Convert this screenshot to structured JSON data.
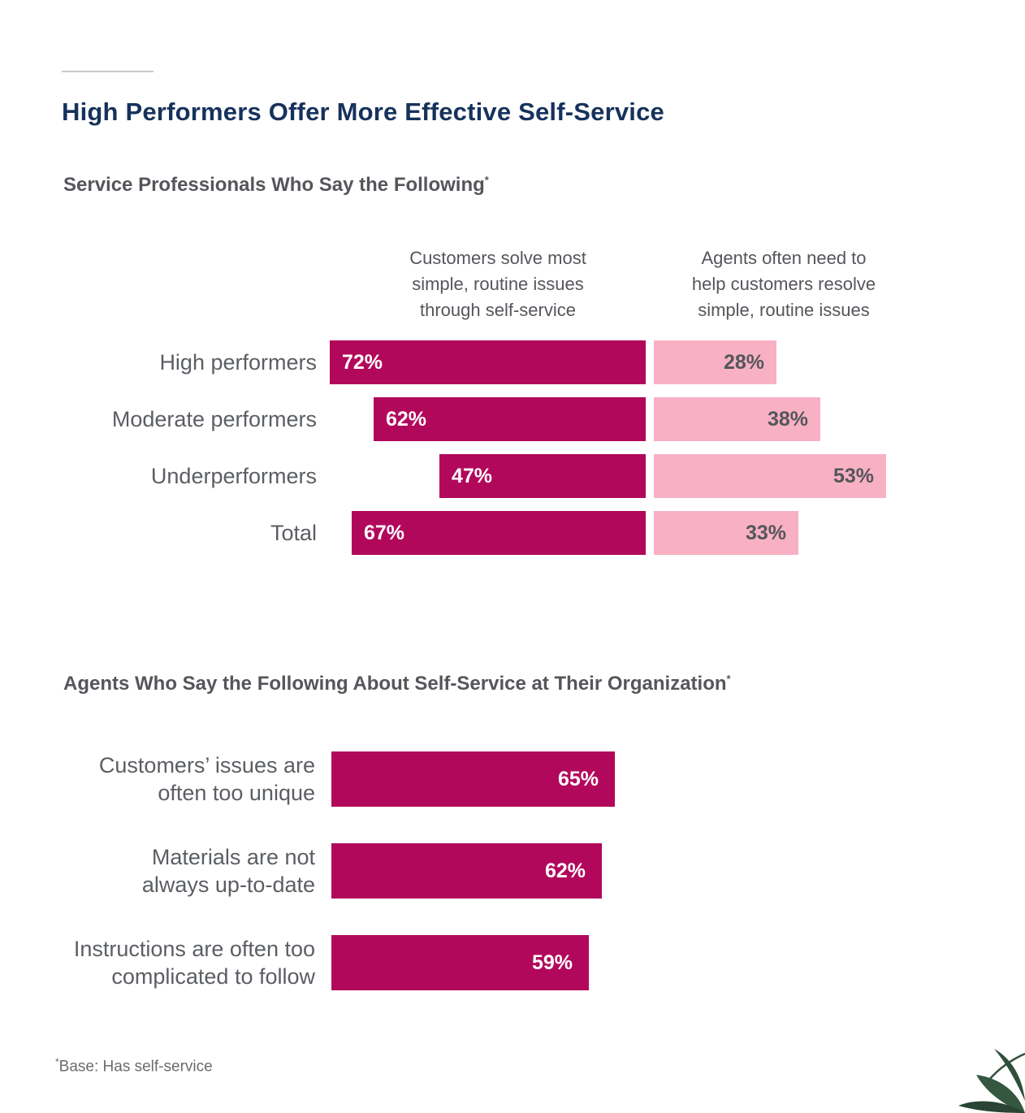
{
  "title": "High Performers Offer More Effective Self-Service",
  "footnote": {
    "marker": "*",
    "text": "Base: Has self-service"
  },
  "colors": {
    "title_navy": "#16325c",
    "bar_dark_magenta": "#b2085c",
    "bar_light_pink": "#f8b1c4",
    "text_gray": "#54565b",
    "label_gray": "#5b5e63",
    "rule_gray": "#c9cacb",
    "leaf_green": "#2f4f3c"
  },
  "icons": {
    "leaf": "leaf-plant-decoration"
  },
  "chart_data": [
    {
      "type": "bar",
      "orientation": "horizontal",
      "layout": "paired-diverging-from-center",
      "title": "Service Professionals Who Say the Following",
      "title_marker": "*",
      "categories": [
        "High performers",
        "Moderate performers",
        "Underperformers",
        "Total"
      ],
      "series": [
        {
          "name": "Customers solve most\nsimple, routine issues\nthrough self-service",
          "values": [
            72,
            62,
            47,
            67
          ],
          "value_labels": [
            "72%",
            "62%",
            "47%",
            "67%"
          ],
          "color": "#b2085c",
          "bar_alignment": "right-edge-at-center",
          "value_label_position": "inside-left",
          "value_label_color": "#ffffff"
        },
        {
          "name": "Agents often need to\nhelp customers resolve\nsimple, routine issues",
          "values": [
            28,
            38,
            53,
            33
          ],
          "value_labels": [
            "28%",
            "38%",
            "53%",
            "33%"
          ],
          "color": "#f8b1c4",
          "bar_alignment": "left-edge-at-center",
          "value_label_position": "inside-right",
          "value_label_color": "#54565b"
        }
      ],
      "value_format": "percent",
      "xlim": [
        0,
        100
      ],
      "grid": false,
      "legend": "column-headers-above-each-series"
    },
    {
      "type": "bar",
      "orientation": "horizontal",
      "title": "Agents Who Say the Following About Self-Service at Their Organization",
      "title_marker": "*",
      "categories": [
        "Customers’ issues are\noften too unique",
        "Materials are not\nalways up-to-date",
        "Instructions are often too\ncomplicated to follow"
      ],
      "values": [
        65,
        62,
        59
      ],
      "value_labels": [
        "65%",
        "62%",
        "59%"
      ],
      "color": "#b2085c",
      "value_format": "percent",
      "value_label_position": "inside-right",
      "value_label_color": "#ffffff",
      "xlim": [
        0,
        100
      ],
      "grid": false
    }
  ]
}
